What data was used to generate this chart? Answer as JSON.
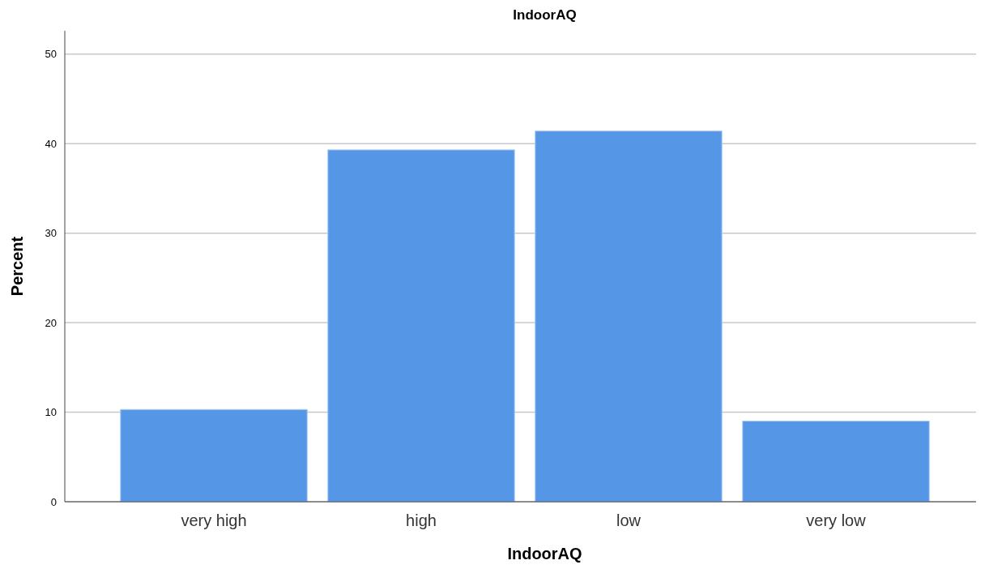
{
  "chart_data": {
    "type": "bar",
    "title": "IndoorAQ",
    "xlabel": "IndoorAQ",
    "ylabel": "Percent",
    "categories": [
      "very high",
      "high",
      "low",
      "very low"
    ],
    "values": [
      10.3,
      39.3,
      41.4,
      9.0
    ],
    "color": "#5596e6",
    "ylim": [
      0,
      52.6
    ],
    "yticks": [
      0,
      10,
      20,
      30,
      40,
      50
    ],
    "grid": "y"
  }
}
